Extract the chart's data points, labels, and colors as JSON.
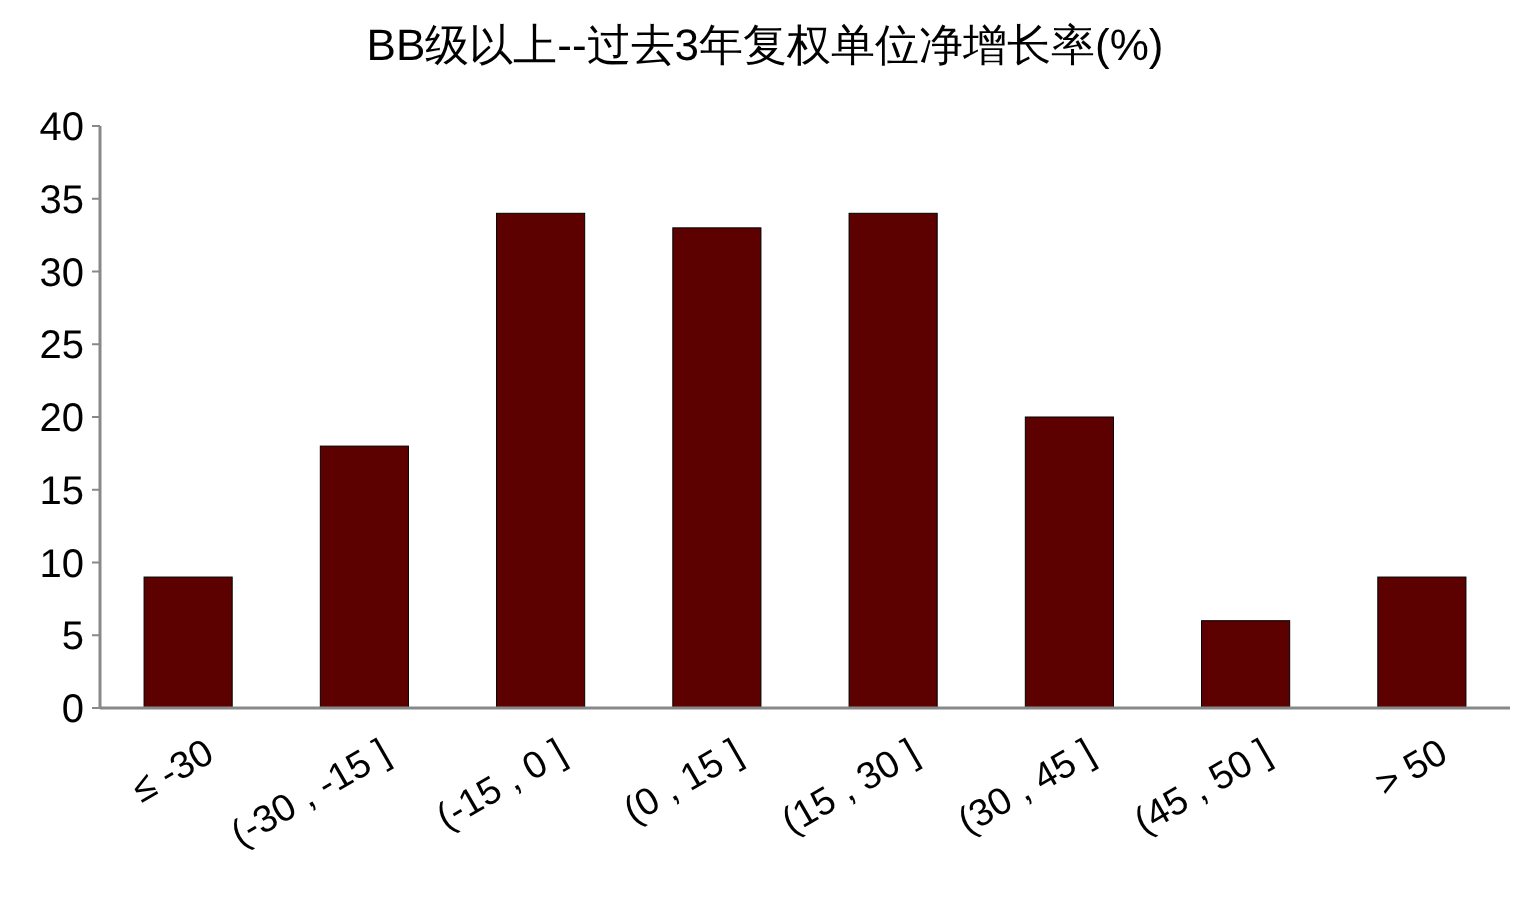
{
  "chart_data": {
    "type": "bar",
    "title": "BB级以上--过去3年复权单位净增长率(%)",
    "categories": [
      "≤ -30",
      "(-30 , -15 ]",
      "(-15 , 0 ]",
      "(0 , 15 ]",
      "(15 , 30 ]",
      "(30 , 45 ]",
      "(45 , 50 ]",
      "> 50"
    ],
    "values": [
      9,
      18,
      34,
      33,
      34,
      20,
      6,
      9
    ],
    "color": "#5c0000",
    "ylim": [
      0,
      40
    ],
    "yticks": [
      0,
      5,
      10,
      15,
      20,
      25,
      30,
      35,
      40
    ]
  }
}
